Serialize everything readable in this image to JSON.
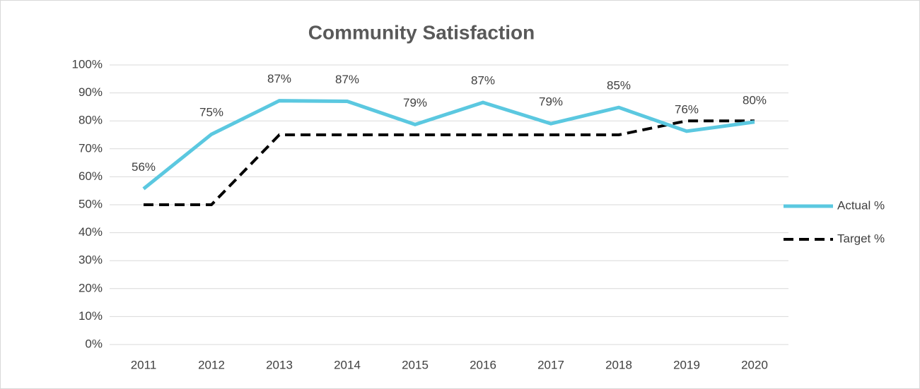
{
  "chart_data": {
    "type": "line",
    "title": "Community Satisfaction",
    "categories": [
      "2011",
      "2012",
      "2013",
      "2014",
      "2015",
      "2016",
      "2017",
      "2018",
      "2019",
      "2020"
    ],
    "series": [
      {
        "name": "Actual %",
        "color": "#5bc8e0",
        "values": [
          55.7,
          75.2,
          87.2,
          87,
          78.7,
          86.6,
          79,
          84.8,
          76.3,
          79.6
        ],
        "value_labels": [
          "56%",
          "75%",
          "87%",
          "87%",
          "79%",
          "87%",
          "79%",
          "85%",
          "76%",
          "80%"
        ]
      },
      {
        "name": "Target %",
        "color": "#000000",
        "dashed": true,
        "values": [
          50,
          50,
          75,
          75,
          75,
          75,
          75,
          75,
          80,
          80
        ]
      }
    ],
    "ylim": [
      0,
      100
    ],
    "yticks": [
      {
        "value": 0,
        "label": "0%"
      },
      {
        "value": 10,
        "label": "10%"
      },
      {
        "value": 20,
        "label": "20%"
      },
      {
        "value": 30,
        "label": "30%"
      },
      {
        "value": 40,
        "label": "40%"
      },
      {
        "value": 50,
        "label": "50%"
      },
      {
        "value": 60,
        "label": "60%"
      },
      {
        "value": 70,
        "label": "70%"
      },
      {
        "value": 80,
        "label": "80%"
      },
      {
        "value": 90,
        "label": "90%"
      },
      {
        "value": 100,
        "label": "100%"
      }
    ],
    "grid": true,
    "legend": "right"
  }
}
